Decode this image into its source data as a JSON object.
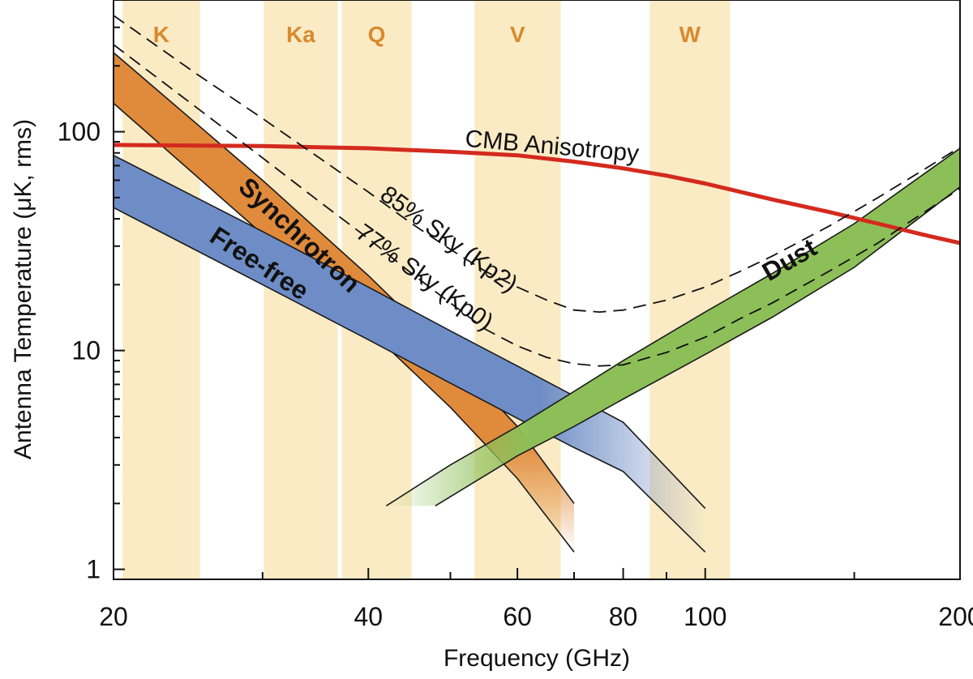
{
  "chart_data": {
    "type": "line",
    "xlabel": "Frequency (GHz)",
    "ylabel": "Antenna Temperature (μK, rms)",
    "xscale": "log",
    "yscale": "log",
    "xlim": [
      20,
      200
    ],
    "ylim": [
      0.9,
      400
    ],
    "xticks": [
      {
        "value": 20,
        "label": "20"
      },
      {
        "value": 40,
        "label": "40"
      },
      {
        "value": 60,
        "label": "60"
      },
      {
        "value": 80,
        "label": "80"
      },
      {
        "value": 100,
        "label": "100"
      },
      {
        "value": 200,
        "label": "200"
      }
    ],
    "yticks": [
      {
        "value": 1,
        "label": "1"
      },
      {
        "value": 10,
        "label": "10"
      },
      {
        "value": 100,
        "label": "100"
      }
    ],
    "bands": [
      {
        "name": "K",
        "range": [
          20.5,
          25.3
        ],
        "color": "#faebc5",
        "label_color": "#d9892e"
      },
      {
        "name": "Ka",
        "range": [
          30.1,
          36.8
        ],
        "color": "#faebc5",
        "label_color": "#d9892e"
      },
      {
        "name": "Q",
        "range": [
          37.2,
          45.0
        ],
        "color": "#faebc5",
        "label_color": "#d9892e"
      },
      {
        "name": "V",
        "range": [
          53.4,
          67.5
        ],
        "color": "#faebc5",
        "label_color": "#d9892e"
      },
      {
        "name": "W",
        "range": [
          86.0,
          107.0
        ],
        "color": "#faebc5",
        "label_color": "#d9892e"
      }
    ],
    "series": [
      {
        "name": "CMB Anisotropy",
        "style": "solid",
        "color": "#d42a1e",
        "x": [
          20,
          30,
          40,
          50,
          60,
          70,
          80,
          90,
          100,
          120,
          140,
          160,
          180,
          200
        ],
        "y": [
          87,
          86,
          84,
          81,
          78,
          73,
          68,
          63,
          58,
          49,
          43,
          38,
          34,
          31
        ]
      },
      {
        "name": "85% Sky (Kp2)",
        "style": "dashed",
        "color": "#111111",
        "x": [
          20,
          25,
          30,
          35,
          40,
          45,
          50,
          55,
          60,
          65,
          70,
          75,
          80,
          90,
          100,
          110,
          120,
          140,
          160,
          180,
          200
        ],
        "y": [
          340,
          185,
          115,
          76,
          53,
          38,
          29,
          23,
          19.5,
          17,
          15.3,
          15,
          15.3,
          17,
          19.5,
          23,
          27,
          37,
          50,
          66,
          85
        ]
      },
      {
        "name": "77% Sky (Kp0)",
        "style": "dashed",
        "color": "#111111",
        "x": [
          20,
          25,
          30,
          35,
          40,
          45,
          50,
          55,
          60,
          65,
          70,
          75,
          80,
          90,
          100,
          110,
          120,
          140,
          160,
          180,
          200
        ],
        "y": [
          250,
          130,
          76,
          48,
          32.5,
          22.5,
          16.5,
          12.5,
          10.5,
          9.3,
          8.7,
          8.5,
          8.6,
          9.8,
          11.5,
          14,
          16.5,
          23,
          31,
          42,
          55
        ]
      }
    ],
    "components": [
      {
        "name": "Synchrotron",
        "color": "#e08a3c",
        "upper": {
          "x": [
            20,
            30,
            40,
            50,
            60,
            70
          ],
          "y": [
            230,
            60,
            22,
            9.5,
            4.5,
            2.0
          ]
        },
        "lower": {
          "x": [
            20,
            30,
            40,
            50,
            60,
            70
          ],
          "y": [
            135,
            34,
            12.5,
            5.5,
            2.6,
            1.2
          ]
        }
      },
      {
        "name": "Free-free",
        "color": "#6e8dc6",
        "upper": {
          "x": [
            20,
            30,
            40,
            50,
            60,
            70,
            80,
            100
          ],
          "y": [
            78,
            35,
            19.5,
            12.3,
            8.5,
            6.2,
            4.7,
            1.9
          ]
        },
        "lower": {
          "x": [
            20,
            30,
            40,
            50,
            60,
            70,
            80,
            100
          ],
          "y": [
            45,
            20,
            11.2,
            7.1,
            4.9,
            3.6,
            2.8,
            1.2
          ]
        }
      },
      {
        "name": "Dust",
        "color": "#8dbf58",
        "upper": {
          "x": [
            42,
            50,
            60,
            70,
            80,
            100,
            120,
            150,
            200
          ],
          "y": [
            1.95,
            3.0,
            4.5,
            6.5,
            9.0,
            15,
            22.5,
            38,
            84
          ]
        },
        "lower": {
          "x": [
            48,
            60,
            70,
            80,
            100,
            120,
            150,
            200
          ],
          "y": [
            1.95,
            3.3,
            4.5,
            6.0,
            9.6,
            14.2,
            24,
            56
          ]
        }
      }
    ]
  }
}
